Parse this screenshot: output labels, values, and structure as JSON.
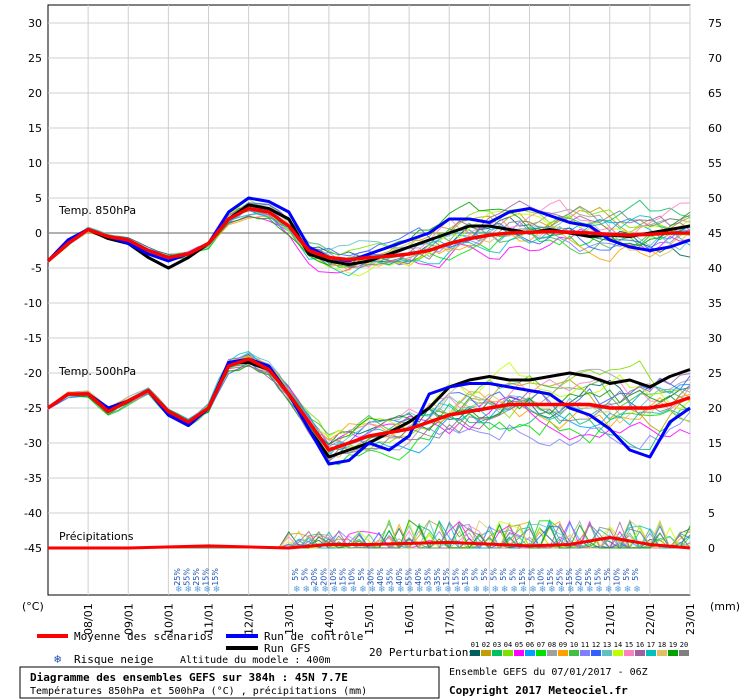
{
  "chart_data": {
    "type": "line",
    "title": "Diagramme des ensembles GEFS sur 384h : 45N 7.7E",
    "subtitle": "Températures 850hPa et 500hPa (°C) , précipitations (mm)",
    "x_dates": [
      "08/01",
      "09/01",
      "10/01",
      "11/01",
      "12/01",
      "13/01",
      "14/01",
      "15/01",
      "16/01",
      "17/01",
      "18/01",
      "19/01",
      "20/01",
      "21/01",
      "22/01",
      "23/01"
    ],
    "x_range_hours": [
      0,
      384
    ],
    "y_left_label": "(°C)",
    "y_left_ticks": [
      30,
      25,
      20,
      15,
      10,
      5,
      0,
      -5,
      -10,
      -15,
      -20,
      -25,
      -30,
      -35,
      -40,
      -45
    ],
    "y_left_range": [
      -45,
      30
    ],
    "y_right_label": "(mm)",
    "y_right_ticks": [
      75,
      70,
      65,
      60,
      55,
      50,
      45,
      40,
      35,
      30,
      25,
      20,
      15,
      10,
      5,
      0
    ],
    "y_right_range": [
      0,
      75
    ],
    "panels": {
      "t850_label": "Temp. 850hPa",
      "t500_label": "Temp. 500hPa",
      "precip_label": "Précipitations"
    },
    "series": [
      {
        "name": "Moyenne des scénarios (850hPa)",
        "color": "#ff0000",
        "hours": [
          0,
          12,
          24,
          36,
          48,
          60,
          72,
          84,
          96,
          108,
          120,
          132,
          144,
          156,
          168,
          180,
          192,
          204,
          216,
          228,
          240,
          252,
          264,
          276,
          288,
          300,
          312,
          324,
          336,
          348,
          360,
          372,
          384
        ],
        "values": [
          -4,
          -1.5,
          0.5,
          -0.5,
          -1,
          -2.5,
          -3.5,
          -3,
          -1.5,
          2,
          3.5,
          3,
          1,
          -2.5,
          -3.5,
          -3.8,
          -3.5,
          -3.3,
          -3,
          -2.5,
          -1.5,
          -0.8,
          -0.3,
          0,
          0.1,
          0.2,
          0.1,
          0,
          -0.2,
          -0.3,
          -0.2,
          0,
          0
        ]
      },
      {
        "name": "Run de contrôle (850hPa)",
        "color": "#0000ff",
        "hours": [
          0,
          12,
          24,
          36,
          48,
          60,
          72,
          84,
          96,
          108,
          120,
          132,
          144,
          156,
          168,
          180,
          192,
          204,
          216,
          228,
          240,
          252,
          264,
          276,
          288,
          300,
          312,
          324,
          336,
          348,
          360,
          372,
          384
        ],
        "values": [
          -4,
          -1,
          0.5,
          -0.5,
          -1.5,
          -3,
          -4,
          -3,
          -1.5,
          3,
          5,
          4.5,
          3,
          -2,
          -3.5,
          -4,
          -3,
          -2,
          -1,
          0,
          2,
          2,
          1.5,
          3,
          3.5,
          2.5,
          1.5,
          1,
          -1,
          -2,
          -2.5,
          -2,
          -1
        ]
      },
      {
        "name": "Run GFS (850hPa)",
        "color": "#000000",
        "hours": [
          0,
          12,
          24,
          36,
          48,
          60,
          72,
          84,
          96,
          108,
          120,
          132,
          144,
          156,
          168,
          180,
          192,
          204,
          216,
          228,
          240,
          252,
          264,
          276,
          288,
          300,
          312,
          324,
          336,
          348,
          360,
          372,
          384
        ],
        "values": [
          -4,
          -1,
          0.5,
          -0.8,
          -1.5,
          -3.5,
          -5,
          -3.5,
          -1.5,
          2,
          4,
          3.5,
          2,
          -3,
          -4,
          -4.5,
          -4,
          -3,
          -2,
          -1,
          0,
          1,
          1,
          0.5,
          0,
          0.5,
          0,
          -0.5,
          -0.3,
          -0.5,
          0,
          0.5,
          1
        ]
      },
      {
        "name": "Moyenne des scénarios (500hPa)",
        "color": "#ff0000",
        "hours": [
          0,
          12,
          24,
          36,
          48,
          60,
          72,
          84,
          96,
          108,
          120,
          132,
          144,
          156,
          168,
          180,
          192,
          204,
          216,
          228,
          240,
          252,
          264,
          276,
          288,
          300,
          312,
          324,
          336,
          348,
          360,
          372,
          384
        ],
        "values": [
          -25,
          -23,
          -23,
          -25.5,
          -24,
          -22.5,
          -25.5,
          -27,
          -25,
          -19,
          -18,
          -19.5,
          -23,
          -27,
          -31,
          -30,
          -29,
          -28.5,
          -28,
          -27,
          -26,
          -25.5,
          -25,
          -24.5,
          -24.5,
          -24.5,
          -24.5,
          -24.5,
          -25,
          -25,
          -25,
          -24.5,
          -23.5
        ]
      },
      {
        "name": "Run de contrôle (500hPa)",
        "color": "#0000ff",
        "hours": [
          0,
          12,
          24,
          36,
          48,
          60,
          72,
          84,
          96,
          108,
          120,
          132,
          144,
          156,
          168,
          180,
          192,
          204,
          216,
          228,
          240,
          252,
          264,
          276,
          288,
          300,
          312,
          324,
          336,
          348,
          360,
          372,
          384
        ],
        "values": [
          -25,
          -23,
          -23,
          -25,
          -24,
          -22.5,
          -26,
          -27.5,
          -25,
          -18.5,
          -18,
          -19,
          -23,
          -28,
          -33,
          -32.5,
          -30,
          -31,
          -29,
          -23,
          -22,
          -21.5,
          -21.5,
          -22,
          -22.5,
          -23,
          -25,
          -26,
          -28,
          -31,
          -32,
          -27,
          -25
        ]
      },
      {
        "name": "Run GFS (500hPa)",
        "color": "#000000",
        "hours": [
          0,
          12,
          24,
          36,
          48,
          60,
          72,
          84,
          96,
          108,
          120,
          132,
          144,
          156,
          168,
          180,
          192,
          204,
          216,
          228,
          240,
          252,
          264,
          276,
          288,
          300,
          312,
          324,
          336,
          348,
          360,
          372,
          384
        ],
        "values": [
          -25,
          -23,
          -23,
          -25,
          -24,
          -22.5,
          -26,
          -27.5,
          -25,
          -18.5,
          -18.5,
          -19.5,
          -23,
          -28,
          -32,
          -31,
          -30,
          -28.5,
          -27,
          -25,
          -22,
          -21,
          -20.5,
          -21,
          -21,
          -20.5,
          -20,
          -20.5,
          -21.5,
          -21,
          -22,
          -20.5,
          -19.5
        ]
      },
      {
        "name": "Précipitations moyenne (mm)",
        "color": "#ff0000",
        "hours": [
          0,
          48,
          96,
          144,
          168,
          192,
          240,
          288,
          312,
          336,
          360,
          384
        ],
        "values": [
          0,
          0,
          0.3,
          0,
          0.5,
          0.5,
          0.8,
          0.3,
          0.5,
          1.5,
          0.5,
          0
        ]
      }
    ],
    "snow_risk": {
      "label": "Risque neige",
      "block1": [
        "25%",
        "55%",
        "25%",
        "15%",
        "15%"
      ],
      "block2": [
        "5%",
        "5%",
        "20%",
        "20%",
        "10%",
        "15%",
        "10%",
        "5%",
        "30%",
        "40%",
        "35%",
        "40%",
        "55%",
        "40%",
        "35%",
        "35%",
        "15%",
        "15%",
        "15%",
        "5%",
        "5%",
        "5%",
        "5%",
        "5%",
        "15%",
        "5%",
        "10%",
        "15%",
        "25%",
        "15%",
        "20%",
        "25%",
        "15%",
        "5%",
        "10%",
        "5%",
        "5%"
      ]
    },
    "legend": {
      "mean": "Moyenne des scénarios",
      "control": "Run de contrôle",
      "gfs": "Run GFS",
      "snow": "Risque neige",
      "altitude": "Altitude du modele : 400m",
      "perturbations": "20 Perturbations",
      "perturbation_ids": [
        "01",
        "02",
        "03",
        "04",
        "05",
        "06",
        "07",
        "08",
        "09",
        "10",
        "11",
        "12",
        "13",
        "14",
        "15",
        "16",
        "17",
        "18",
        "19",
        "20"
      ],
      "perturbation_colors": [
        "#006060",
        "#c0a000",
        "#00c060",
        "#80e000",
        "#ff00ff",
        "#00a0ff",
        "#00e000",
        "#a0a0a0",
        "#ffa000",
        "#40c040",
        "#8080ff",
        "#3060ff",
        "#60c0c0",
        "#c0ff00",
        "#ff80c0",
        "#a060a0",
        "#00c0c0",
        "#e0c060",
        "#00a000",
        "#808080"
      ]
    },
    "footer": {
      "run_info": "Ensemble GEFS du 07/01/2017 - 06Z",
      "copyright": "Copyright 2017 Meteociel.fr"
    }
  }
}
